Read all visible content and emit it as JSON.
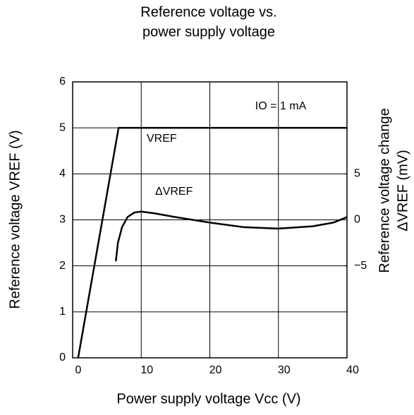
{
  "chart_data": {
    "type": "line",
    "title": [
      "Reference voltage vs.",
      "power supply voltage"
    ],
    "xlabel": "Power supply voltage Vcc (V)",
    "ylabel": "Reference voltage VREF (V)",
    "y2label": [
      "Reference voltage change",
      "ΔVREF (mV)"
    ],
    "annotation": "IO = 1 mA",
    "xlim": [
      0,
      40
    ],
    "xticks": [
      0,
      10,
      20,
      30,
      40
    ],
    "ylim": [
      0,
      6
    ],
    "yticks": [
      0,
      1,
      2,
      3,
      4,
      5,
      6
    ],
    "y2lim": [
      -15,
      15
    ],
    "y2ticks": [
      {
        "value": -5,
        "label": "−5"
      },
      0,
      5
    ],
    "grid": true,
    "series": [
      {
        "name": "VREF",
        "color": "#000000",
        "x": [
          0.8,
          6.7,
          40
        ],
        "values": [
          0,
          5,
          5
        ]
      },
      {
        "name": "ΔVREF",
        "color": "#000000",
        "axis": "y2",
        "x": [
          6.3,
          6.6,
          7.2,
          8,
          9,
          10,
          12,
          15,
          20,
          25,
          30,
          35,
          38,
          40
        ],
        "values": [
          -4.5,
          -2.5,
          -0.8,
          0.3,
          0.8,
          0.9,
          0.7,
          0.3,
          -0.3,
          -0.8,
          -0.95,
          -0.7,
          -0.3,
          0.3
        ]
      }
    ]
  }
}
